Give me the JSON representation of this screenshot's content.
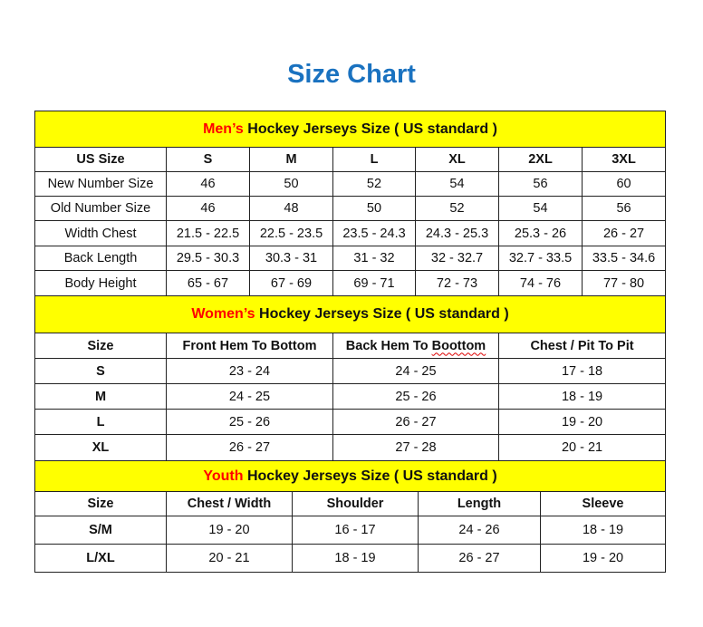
{
  "title": "Size Chart",
  "colors": {
    "title": "#1a72c0",
    "header_bg": "#ffff00",
    "accent": "#ff0000"
  },
  "men": {
    "heading_accent": "Men’s",
    "heading_rest": " Hockey Jerseys Size ( US standard )",
    "columns": [
      "US Size",
      "S",
      "M",
      "L",
      "XL",
      "2XL",
      "3XL"
    ],
    "rows": [
      [
        "New Number Size",
        "46",
        "50",
        "52",
        "54",
        "56",
        "60"
      ],
      [
        "Old Number Size",
        "46",
        "48",
        "50",
        "52",
        "54",
        "56"
      ],
      [
        "Width Chest",
        "21.5 - 22.5",
        "22.5 - 23.5",
        "23.5 - 24.3",
        "24.3 - 25.3",
        "25.3 - 26",
        "26 - 27"
      ],
      [
        "Back Length",
        "29.5 - 30.3",
        "30.3 - 31",
        "31 - 32",
        "32 - 32.7",
        "32.7 - 33.5",
        "33.5 - 34.6"
      ],
      [
        "Body Height",
        "65 - 67",
        "67 - 69",
        "69 - 71",
        "72 - 73",
        "74 - 76",
        "77 - 80"
      ]
    ]
  },
  "women": {
    "heading_accent": "Women’s",
    "heading_rest": " Hockey Jerseys Size ( US standard )",
    "columns": [
      "Size",
      "Front Hem To Bottom",
      "Back Hem To Boottom",
      "Chest / Pit To Pit"
    ],
    "rows": [
      [
        "S",
        "23 - 24",
        "24 - 25",
        "17 - 18"
      ],
      [
        "M",
        "24 - 25",
        "25 - 26",
        "18 - 19"
      ],
      [
        "L",
        "25 - 26",
        "26 - 27",
        "19 - 20"
      ],
      [
        "XL",
        "26 - 27",
        "27 - 28",
        "20 - 21"
      ]
    ]
  },
  "youth": {
    "heading_accent": "Youth",
    "heading_rest": " Hockey Jerseys Size ( US standard )",
    "columns": [
      "Size",
      "Chest / Width",
      "Shoulder",
      "Length",
      "Sleeve"
    ],
    "rows": [
      [
        "S/M",
        "19 - 20",
        "16 - 17",
        "24 - 26",
        "18 - 19"
      ],
      [
        "L/XL",
        "20 - 21",
        "18 - 19",
        "26 - 27",
        "19 - 20"
      ]
    ]
  }
}
